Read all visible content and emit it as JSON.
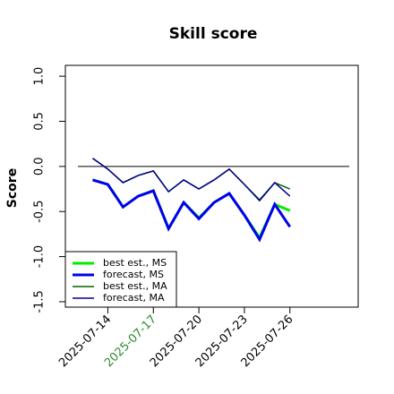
{
  "chart_data": {
    "type": "line",
    "title": "Skill score",
    "y_label": "Score",
    "x": [
      13,
      14,
      15,
      16,
      17,
      18,
      19,
      20,
      21,
      22,
      23,
      24,
      25,
      26
    ],
    "xlim": [
      11.2,
      30.5
    ],
    "xticks": [
      {
        "value": 14,
        "label": "2025-07-14"
      },
      {
        "value": 17,
        "label": "2025-07-17"
      },
      {
        "value": 20,
        "label": "2025-07-20"
      },
      {
        "value": 23,
        "label": "2025-07-23"
      },
      {
        "value": 26,
        "label": "2025-07-26"
      }
    ],
    "xtick_label_colors": [
      "#000000",
      "#2e8b2e",
      "#000000",
      "#000000",
      "#000000"
    ],
    "ylim": [
      -1.56,
      1.12
    ],
    "yticks": [
      {
        "value": -1.5,
        "label": "-1.5"
      },
      {
        "value": -1,
        "label": "-1.0"
      },
      {
        "value": -0.5,
        "label": "-0.5"
      },
      {
        "value": 0,
        "label": "0.0"
      },
      {
        "value": 0.5,
        "label": "0.5"
      },
      {
        "value": 1,
        "label": "1.0"
      }
    ],
    "reference_line": 0,
    "legend_position": "bottom-left",
    "series": [
      {
        "name": "best est., MS",
        "color": "#00ee00",
        "width": 3,
        "values": [
          -0.15,
          -0.2,
          -0.45,
          -0.33,
          -0.27,
          -0.69,
          -0.4,
          -0.57,
          -0.4,
          -0.3,
          -0.54,
          -0.79,
          -0.42,
          -0.49
        ]
      },
      {
        "name": "forecast, MS",
        "color": "#0000ee",
        "width": 3,
        "values": [
          -0.15,
          -0.2,
          -0.45,
          -0.33,
          -0.27,
          -0.69,
          -0.4,
          -0.58,
          -0.4,
          -0.3,
          -0.54,
          -0.81,
          -0.42,
          -0.67
        ]
      },
      {
        "name": "best est., MA",
        "color": "#006400",
        "width": 1.5,
        "values": [
          0.09,
          -0.03,
          -0.18,
          -0.1,
          -0.05,
          -0.28,
          -0.15,
          -0.25,
          -0.15,
          -0.03,
          -0.2,
          -0.37,
          -0.18,
          -0.25
        ]
      },
      {
        "name": "forecast, MA",
        "color": "#00008b",
        "width": 1.5,
        "values": [
          0.09,
          -0.03,
          -0.18,
          -0.1,
          -0.05,
          -0.28,
          -0.15,
          -0.25,
          -0.15,
          -0.03,
          -0.2,
          -0.38,
          -0.18,
          -0.33
        ]
      }
    ]
  }
}
